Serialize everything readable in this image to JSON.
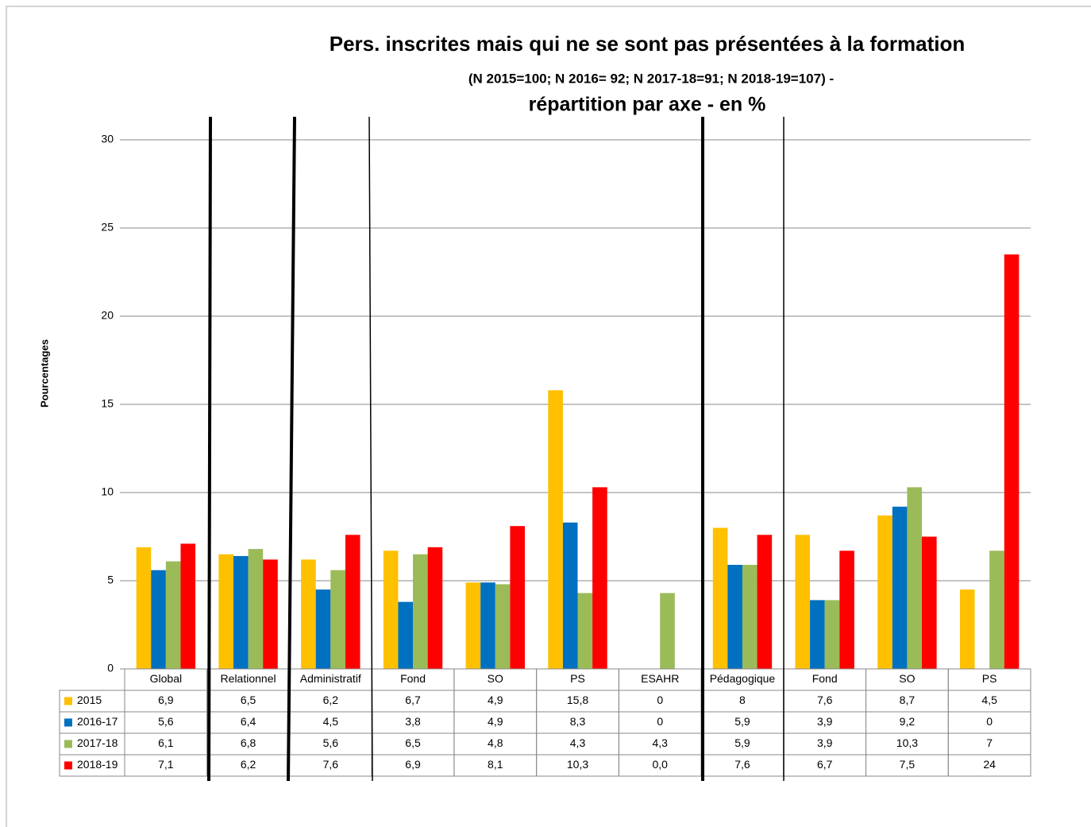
{
  "chart_data": {
    "type": "bar",
    "title": "Pers. inscrites mais qui ne se sont pas présentées à la formation",
    "subtitle": "(N 2015=100; N 2016= 92; N 2017-18=91; N 2018-19=107) -",
    "subtitle2": "répartition par axe - en %",
    "y_label": "Pourcentages",
    "categories": [
      "Global",
      "Relationnel",
      "Administratif",
      "Fond",
      "SO",
      "PS",
      "ESAHR",
      "Pédagogique",
      "Fond",
      "SO",
      "PS"
    ],
    "series": [
      {
        "name": "2015",
        "color": "#FFC000",
        "values": [
          6.9,
          6.5,
          6.2,
          6.7,
          4.9,
          15.8,
          0,
          8,
          7.6,
          8.7,
          4.5
        ],
        "value_labels": [
          "6,9",
          "6,5",
          "6,2",
          "6,7",
          "4,9",
          "15,8",
          "0",
          "8",
          "7,6",
          "8,7",
          "4,5"
        ]
      },
      {
        "name": "2016-17",
        "color": "#0070C0",
        "values": [
          5.6,
          6.4,
          4.5,
          3.8,
          4.9,
          8.3,
          0,
          5.9,
          3.9,
          9.2,
          0
        ],
        "value_labels": [
          "5,6",
          "6,4",
          "4,5",
          "3,8",
          "4,9",
          "8,3",
          "0",
          "5,9",
          "3,9",
          "9,2",
          "0"
        ]
      },
      {
        "name": "2017-18",
        "color": "#9BBB59",
        "values": [
          6.1,
          6.8,
          5.6,
          6.5,
          4.8,
          4.3,
          4.3,
          5.9,
          3.9,
          10.3,
          6.7
        ],
        "value_labels": [
          "6,1",
          "6,8",
          "5,6",
          "6,5",
          "4,8",
          "4,3",
          "4,3",
          "5,9",
          "3,9",
          "10,3",
          "7"
        ]
      },
      {
        "name": "2018-19",
        "color": "#FF0000",
        "values": [
          7.1,
          6.2,
          7.6,
          6.9,
          8.1,
          10.3,
          0,
          7.6,
          6.7,
          7.5,
          23.5
        ],
        "value_labels": [
          "7,1",
          "6,2",
          "7,6",
          "6,9",
          "8,1",
          "10,3",
          "0,0",
          "7,6",
          "6,7",
          "7,5",
          "24"
        ]
      }
    ],
    "ylim": [
      0,
      30
    ],
    "yticks": [
      0,
      5,
      10,
      15,
      20,
      25,
      30
    ],
    "grid": true
  }
}
